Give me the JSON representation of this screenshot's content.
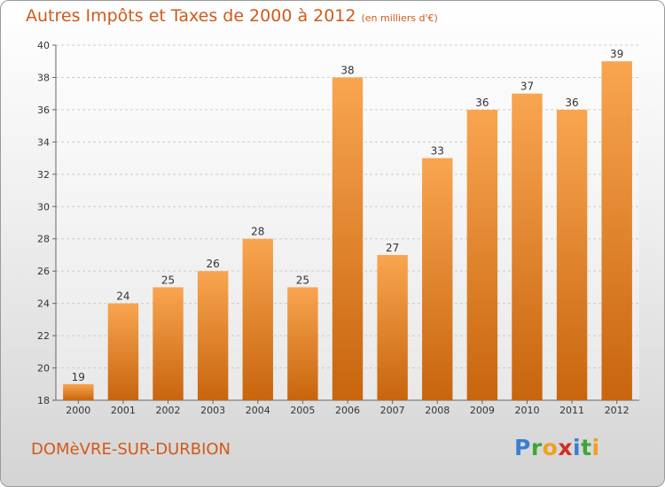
{
  "title": "Autres Impôts et Taxes de 2000 à 2012",
  "subtitle": "(en milliers d'€)",
  "commune": "DOMèVRE-SUR-DURBION",
  "logo": {
    "letters": [
      "P",
      "r",
      "o",
      "x",
      "i",
      "t",
      "i"
    ],
    "colors": [
      "#3a7fd0",
      "#3ea53a",
      "#f0a020",
      "#d03020",
      "#3a7fd0",
      "#3ea53a",
      "#f0a020"
    ]
  },
  "colors": {
    "bar": "#f0902e",
    "bar_light": "#f9a550",
    "bar_dark": "#c8650e",
    "text": "#d2591a"
  },
  "chart_data": {
    "type": "bar",
    "categories": [
      "2000",
      "2001",
      "2002",
      "2003",
      "2004",
      "2005",
      "2006",
      "2007",
      "2008",
      "2009",
      "2010",
      "2011",
      "2012"
    ],
    "values": [
      19,
      24,
      25,
      26,
      28,
      25,
      38,
      27,
      33,
      36,
      37,
      36,
      39
    ],
    "ylim": [
      18,
      40
    ],
    "yticks": [
      18,
      20,
      22,
      24,
      26,
      28,
      30,
      32,
      34,
      36,
      38,
      40
    ],
    "grid": true
  }
}
